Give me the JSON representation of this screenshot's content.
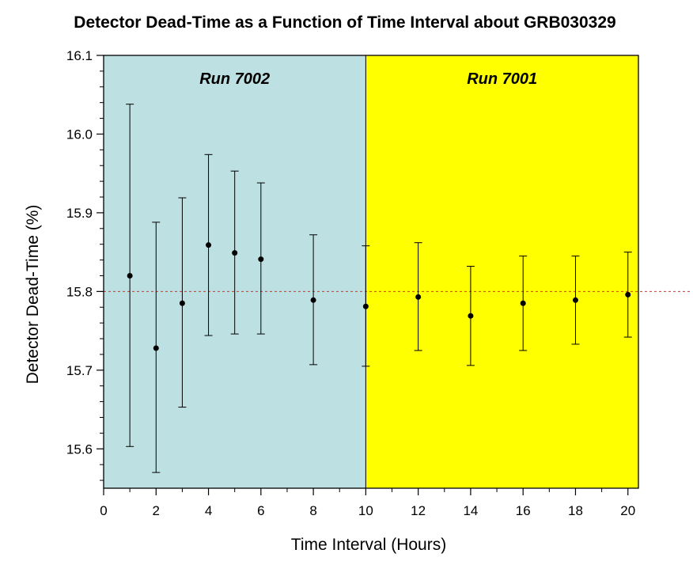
{
  "chart_data": {
    "type": "scatter",
    "title": "Detector Dead-Time as a Function of Time Interval about GRB030329",
    "xlabel": "Time Interval (Hours)",
    "ylabel": "Detector Dead-Time (%)",
    "xlim": [
      0,
      20.4
    ],
    "ylim": [
      15.55,
      16.1
    ],
    "x_ticks": [
      0,
      2,
      4,
      6,
      8,
      10,
      12,
      14,
      16,
      18,
      20
    ],
    "y_ticks": [
      15.6,
      15.7,
      15.8,
      15.9,
      16.0,
      16.1
    ],
    "y_tick_labels": [
      "15.6",
      "15.7",
      "15.8",
      "15.9",
      "16.0",
      "16.1"
    ],
    "grid": false,
    "reference_line": {
      "y": 15.8,
      "style": "dashed",
      "color": "#e03020"
    },
    "regions": [
      {
        "label": "Run 7002",
        "x_start": 0,
        "x_end": 10,
        "color": "#bde0e3"
      },
      {
        "label": "Run 7001",
        "x_start": 10,
        "x_end": 20.4,
        "color": "#ffff00"
      }
    ],
    "series": [
      {
        "points": [
          {
            "x": 1,
            "y": 15.82,
            "ylow": 15.603,
            "yhigh": 16.038
          },
          {
            "x": 2,
            "y": 15.728,
            "ylow": 15.57,
            "yhigh": 15.888
          },
          {
            "x": 3,
            "y": 15.785,
            "ylow": 15.653,
            "yhigh": 15.919
          },
          {
            "x": 4,
            "y": 15.859,
            "ylow": 15.744,
            "yhigh": 15.974
          },
          {
            "x": 5,
            "y": 15.849,
            "ylow": 15.746,
            "yhigh": 15.953
          },
          {
            "x": 6,
            "y": 15.841,
            "ylow": 15.746,
            "yhigh": 15.938
          },
          {
            "x": 8,
            "y": 15.789,
            "ylow": 15.707,
            "yhigh": 15.872
          },
          {
            "x": 10,
            "y": 15.781,
            "ylow": 15.705,
            "yhigh": 15.858
          },
          {
            "x": 12,
            "y": 15.793,
            "ylow": 15.725,
            "yhigh": 15.862
          },
          {
            "x": 14,
            "y": 15.769,
            "ylow": 15.706,
            "yhigh": 15.832
          },
          {
            "x": 16,
            "y": 15.785,
            "ylow": 15.725,
            "yhigh": 15.845
          },
          {
            "x": 18,
            "y": 15.789,
            "ylow": 15.733,
            "yhigh": 15.845
          },
          {
            "x": 20,
            "y": 15.796,
            "ylow": 15.742,
            "yhigh": 15.85
          }
        ]
      }
    ]
  }
}
